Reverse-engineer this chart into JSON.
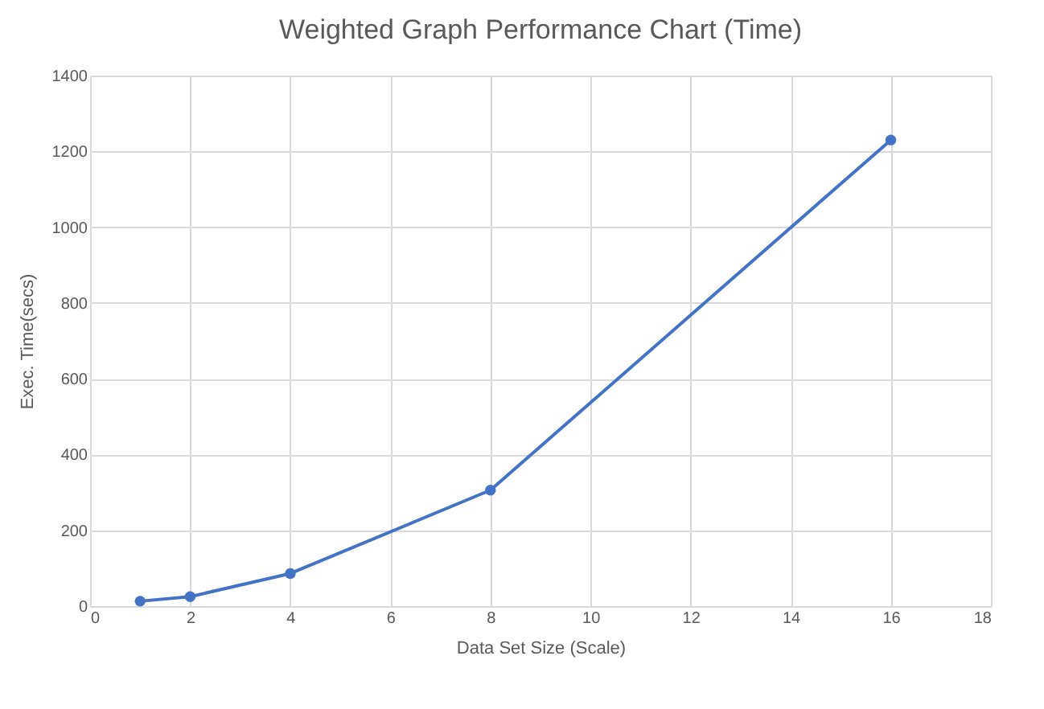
{
  "chart_data": {
    "type": "line",
    "title": "Weighted Graph Performance Chart (Time)",
    "xlabel": "Data Set Size (Scale)",
    "ylabel": "Exec. Time(secs)",
    "x": [
      1,
      2,
      4,
      8,
      16
    ],
    "series": [
      {
        "color": "#4472c4",
        "values": [
          13,
          25,
          86,
          306,
          1230
        ]
      }
    ],
    "xlim": [
      0,
      18
    ],
    "xticks": [
      0,
      2,
      4,
      6,
      8,
      10,
      12,
      14,
      16,
      18
    ],
    "ylim": [
      0,
      1400
    ],
    "yticks": [
      0,
      200,
      400,
      600,
      800,
      1000,
      1200,
      1400
    ],
    "grid": true,
    "marker": "circle",
    "line_style": "solid",
    "legend": false
  }
}
